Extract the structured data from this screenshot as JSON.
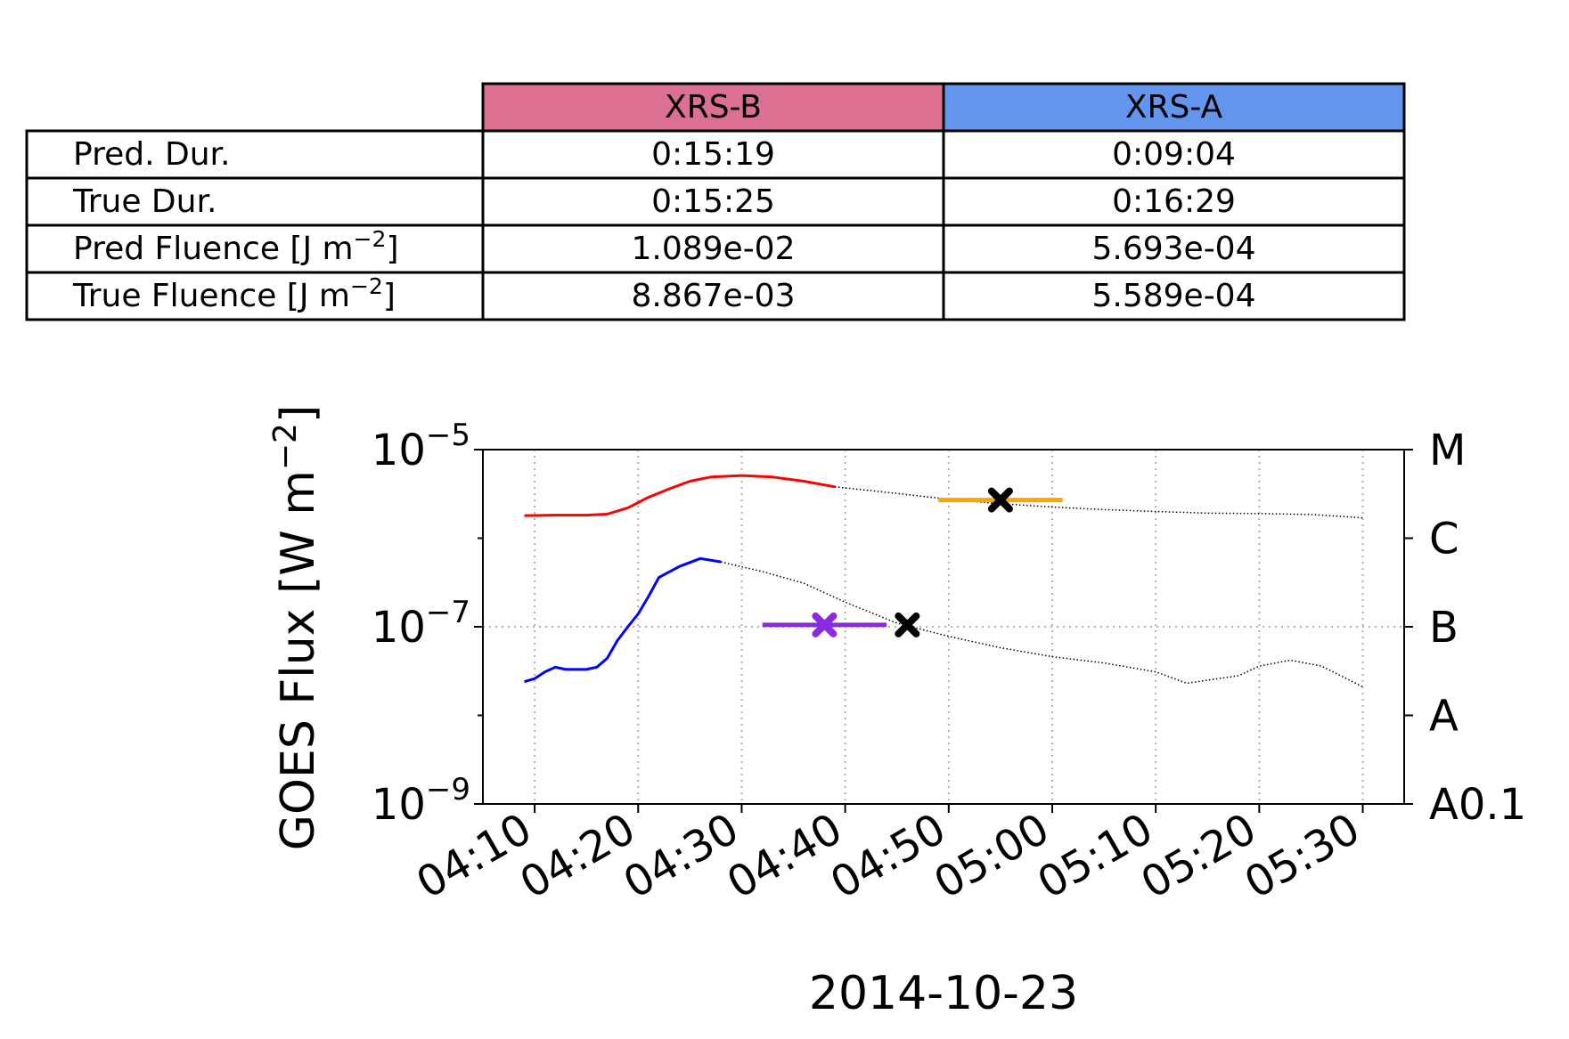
{
  "summary_table": {
    "columns": [
      {
        "label": "XRS-B",
        "color": "#DB7093"
      },
      {
        "label": "XRS-A",
        "color": "#6495ED"
      }
    ],
    "rows": [
      {
        "label": "Pred. Dur.",
        "unit": "",
        "values": [
          "0:15:19",
          "0:09:04"
        ]
      },
      {
        "label": "True Dur.",
        "unit": "",
        "values": [
          "0:15:25",
          "0:16:29"
        ]
      },
      {
        "label": "Pred Fluence [J m",
        "unit": "−2",
        "unit_close": "]",
        "values": [
          "1.089e-02",
          "5.693e-04"
        ]
      },
      {
        "label": "True Fluence [J m",
        "unit": "−2",
        "unit_close": "]",
        "values": [
          "8.867e-03",
          "5.589e-04"
        ]
      }
    ]
  },
  "chart_data": {
    "type": "line",
    "date_label": "2014-10-23",
    "ylabel": "GOES Flux [W m",
    "ylabel_sup": "−2",
    "ylabel_close": "]",
    "yscale": "log",
    "ylim": [
      1e-09,
      1e-05
    ],
    "y_ticks": [
      {
        "base": "10",
        "exp": "−9",
        "value": 1e-09
      },
      {
        "base": "10",
        "exp": "−7",
        "value": 1e-07
      },
      {
        "base": "10",
        "exp": "−5",
        "value": 1e-05
      }
    ],
    "xlim": [
      "04:05",
      "05:34"
    ],
    "x_ticks": [
      "04:10",
      "04:20",
      "04:30",
      "04:40",
      "04:50",
      "05:00",
      "05:10",
      "05:20",
      "05:30"
    ],
    "grid": "dotted",
    "flare_classes": [
      {
        "label": "M",
        "value": 1e-05
      },
      {
        "label": "C",
        "value": 1e-06
      },
      {
        "label": "B",
        "value": 1e-07
      },
      {
        "label": "A",
        "value": 1e-08
      },
      {
        "label": "A0.1",
        "value": 1e-09
      }
    ],
    "series": [
      {
        "channel": "XRS-B observed",
        "color": "#FF0000",
        "style": "solid",
        "points": [
          [
            "04:09",
            1.8e-06
          ],
          [
            "04:12",
            1.82e-06
          ],
          [
            "04:15",
            1.82e-06
          ],
          [
            "04:17",
            1.87e-06
          ],
          [
            "04:19",
            2.2e-06
          ],
          [
            "04:21",
            2.9e-06
          ],
          [
            "04:23",
            3.6e-06
          ],
          [
            "04:25",
            4.4e-06
          ],
          [
            "04:27",
            4.9e-06
          ],
          [
            "04:30",
            5.1e-06
          ],
          [
            "04:33",
            4.9e-06
          ],
          [
            "04:36",
            4.4e-06
          ],
          [
            "04:39",
            3.8e-06
          ]
        ]
      },
      {
        "channel": "XRS-B later data",
        "color": "#000000",
        "style": "dotted",
        "points": [
          [
            "04:39",
            3.8e-06
          ],
          [
            "04:45",
            3.2e-06
          ],
          [
            "04:50",
            2.75e-06
          ],
          [
            "04:55",
            2.45e-06
          ],
          [
            "05:00",
            2.25e-06
          ],
          [
            "05:05",
            2.1e-06
          ],
          [
            "05:10",
            2e-06
          ],
          [
            "05:15",
            1.92e-06
          ],
          [
            "05:20",
            1.9e-06
          ],
          [
            "05:25",
            1.85e-06
          ],
          [
            "05:30",
            1.7e-06
          ]
        ]
      },
      {
        "channel": "XRS-A observed",
        "color": "#0000FF",
        "style": "solid",
        "points": [
          [
            "04:09",
            2.4e-08
          ],
          [
            "04:10",
            2.6e-08
          ],
          [
            "04:11",
            3.1e-08
          ],
          [
            "04:12",
            3.5e-08
          ],
          [
            "04:13",
            3.3e-08
          ],
          [
            "04:15",
            3.3e-08
          ],
          [
            "04:16",
            3.5e-08
          ],
          [
            "04:17",
            4.4e-08
          ],
          [
            "04:18",
            7e-08
          ],
          [
            "04:19",
            1e-07
          ],
          [
            "04:20",
            1.4e-07
          ],
          [
            "04:21",
            2.2e-07
          ],
          [
            "04:22",
            3.6e-07
          ],
          [
            "04:24",
            4.8e-07
          ],
          [
            "04:26",
            5.9e-07
          ],
          [
            "04:28",
            5.4e-07
          ]
        ]
      },
      {
        "channel": "XRS-A later data",
        "color": "#000000",
        "style": "dotted",
        "points": [
          [
            "04:28",
            5.4e-07
          ],
          [
            "04:32",
            4.2e-07
          ],
          [
            "04:36",
            3.1e-07
          ],
          [
            "04:40",
            1.9e-07
          ],
          [
            "04:45",
            1.1e-07
          ],
          [
            "04:50",
            7.8e-08
          ],
          [
            "04:55",
            5.8e-08
          ],
          [
            "05:00",
            4.6e-08
          ],
          [
            "05:05",
            3.9e-08
          ],
          [
            "05:10",
            3.1e-08
          ],
          [
            "05:13",
            2.3e-08
          ],
          [
            "05:15",
            2.5e-08
          ],
          [
            "05:18",
            2.8e-08
          ],
          [
            "05:20",
            3.6e-08
          ],
          [
            "05:23",
            4.2e-08
          ],
          [
            "05:26",
            3.6e-08
          ],
          [
            "05:30",
            2.1e-08
          ]
        ]
      }
    ],
    "markers": [
      {
        "channel": "XRS-B predicted",
        "color": "#FFA500",
        "symbol": "x",
        "x": "04:55",
        "y": 2.7e-06,
        "range": [
          "04:49",
          "05:01"
        ]
      },
      {
        "channel": "XRS-B true",
        "color": "#000000",
        "symbol": "x",
        "x": "04:55",
        "y": 2.7e-06,
        "range": null
      },
      {
        "channel": "XRS-A predicted",
        "color": "#8A2BE2",
        "symbol": "x",
        "x": "04:38",
        "y": 1.05e-07,
        "range": [
          "04:32",
          "04:44"
        ]
      },
      {
        "channel": "XRS-A true",
        "color": "#000000",
        "symbol": "x",
        "x": "04:46",
        "y": 1.05e-07,
        "range": null
      }
    ]
  }
}
